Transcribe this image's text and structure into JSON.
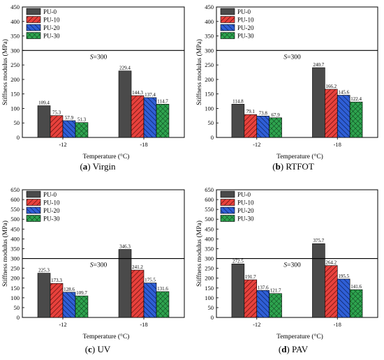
{
  "chart_data": [
    {
      "type": "bar",
      "caption_letter": "a",
      "caption_text": "Virgin",
      "categories": [
        "-12",
        "-18"
      ],
      "series": [
        {
          "name": "PU-0",
          "values": [
            109.4,
            229.4
          ]
        },
        {
          "name": "PU-10",
          "values": [
            75.3,
            144.3
          ]
        },
        {
          "name": "PU-20",
          "values": [
            57.9,
            137.4
          ]
        },
        {
          "name": "PU-30",
          "values": [
            51.3,
            114.7
          ]
        }
      ],
      "xlabel": "Temperature (°C)",
      "ylabel": "Stiffness modulus (MPa)",
      "ylim": [
        0,
        450
      ],
      "yticks": [
        0,
        50,
        100,
        150,
        200,
        250,
        300,
        350,
        400,
        450
      ],
      "value_labels": [
        [
          "109.4",
          "229.4"
        ],
        [
          "75.3",
          "144.3"
        ],
        [
          "57.9",
          "137.4"
        ],
        [
          "51.3",
          "114.7"
        ]
      ],
      "reference_line": {
        "value": 300,
        "label_italic": "S",
        "label_rest": "=300"
      },
      "legend": "top-left"
    },
    {
      "type": "bar",
      "caption_letter": "b",
      "caption_text": "RTFOT",
      "categories": [
        "-12",
        "-18"
      ],
      "series": [
        {
          "name": "PU-0",
          "values": [
            114.8,
            240.7
          ]
        },
        {
          "name": "PU-10",
          "values": [
            79.1,
            166.2
          ]
        },
        {
          "name": "PU-20",
          "values": [
            73.8,
            145.6
          ]
        },
        {
          "name": "PU-30",
          "values": [
            67.9,
            122.4
          ]
        }
      ],
      "xlabel": "Temperature (°C)",
      "ylabel": "Stiffness modulus (MPa)",
      "ylim": [
        0,
        450
      ],
      "yticks": [
        0,
        50,
        100,
        150,
        200,
        250,
        300,
        350,
        400,
        450
      ],
      "value_labels": [
        [
          "114.8",
          "240.7"
        ],
        [
          "79.1",
          "166.2"
        ],
        [
          "73.8",
          "145.6"
        ],
        [
          "67.9",
          "122.4"
        ]
      ],
      "reference_line": {
        "value": 300,
        "label_italic": "S",
        "label_rest": "=300"
      },
      "legend": "top-left"
    },
    {
      "type": "bar",
      "caption_letter": "c",
      "caption_text": "UV",
      "categories": [
        "-12",
        "-18"
      ],
      "series": [
        {
          "name": "PU-0",
          "values": [
            225.3,
            346.3
          ]
        },
        {
          "name": "PU-10",
          "values": [
            173.3,
            241.2
          ]
        },
        {
          "name": "PU-20",
          "values": [
            128.6,
            175.5
          ]
        },
        {
          "name": "PU-30",
          "values": [
            109.7,
            131.6
          ]
        }
      ],
      "xlabel": "Temperature (°C)",
      "ylabel": "Stiffness modulus (MPa)",
      "ylim": [
        0,
        650
      ],
      "yticks": [
        0,
        50,
        100,
        150,
        200,
        250,
        300,
        350,
        400,
        450,
        500,
        550,
        600,
        650
      ],
      "value_labels": [
        [
          "225.3",
          "346.3"
        ],
        [
          "173.3",
          "241.2"
        ],
        [
          "128.6",
          "175.5"
        ],
        [
          "109.7",
          "131.6"
        ]
      ],
      "reference_line": {
        "value": 300,
        "label_italic": "S",
        "label_rest": "=300"
      },
      "legend": "top-left"
    },
    {
      "type": "bar",
      "caption_letter": "d",
      "caption_text": "PAV",
      "categories": [
        "-12",
        "-18"
      ],
      "series": [
        {
          "name": "PU-0",
          "values": [
            272.5,
            375.7
          ]
        },
        {
          "name": "PU-10",
          "values": [
            191.7,
            264.2
          ]
        },
        {
          "name": "PU-20",
          "values": [
            137.6,
            195.5
          ]
        },
        {
          "name": "PU-30",
          "values": [
            121.7,
            141.6
          ]
        }
      ],
      "xlabel": "Temperature (°C)",
      "ylabel": "Stiffness modulus (MPa)",
      "ylim": [
        0,
        650
      ],
      "yticks": [
        0,
        50,
        100,
        150,
        200,
        250,
        300,
        350,
        400,
        450,
        500,
        550,
        600,
        650
      ],
      "value_labels": [
        [
          "272.5",
          "375.7"
        ],
        [
          "191.7",
          "264.2"
        ],
        [
          "137.6",
          "195.5"
        ],
        [
          "121.7",
          "141.6"
        ]
      ],
      "reference_line": {
        "value": 300,
        "label_italic": "S",
        "label_rest": "=300"
      },
      "legend": "top-left"
    }
  ],
  "series_style": [
    {
      "fill": "#4a4a4a",
      "pattern": "solid"
    },
    {
      "fill": "#e8413c",
      "pattern": "diagonal-hatch"
    },
    {
      "fill": "#2f5fd6",
      "pattern": "diagonal-hatch"
    },
    {
      "fill": "#2ea44f",
      "pattern": "crosshatch"
    }
  ]
}
